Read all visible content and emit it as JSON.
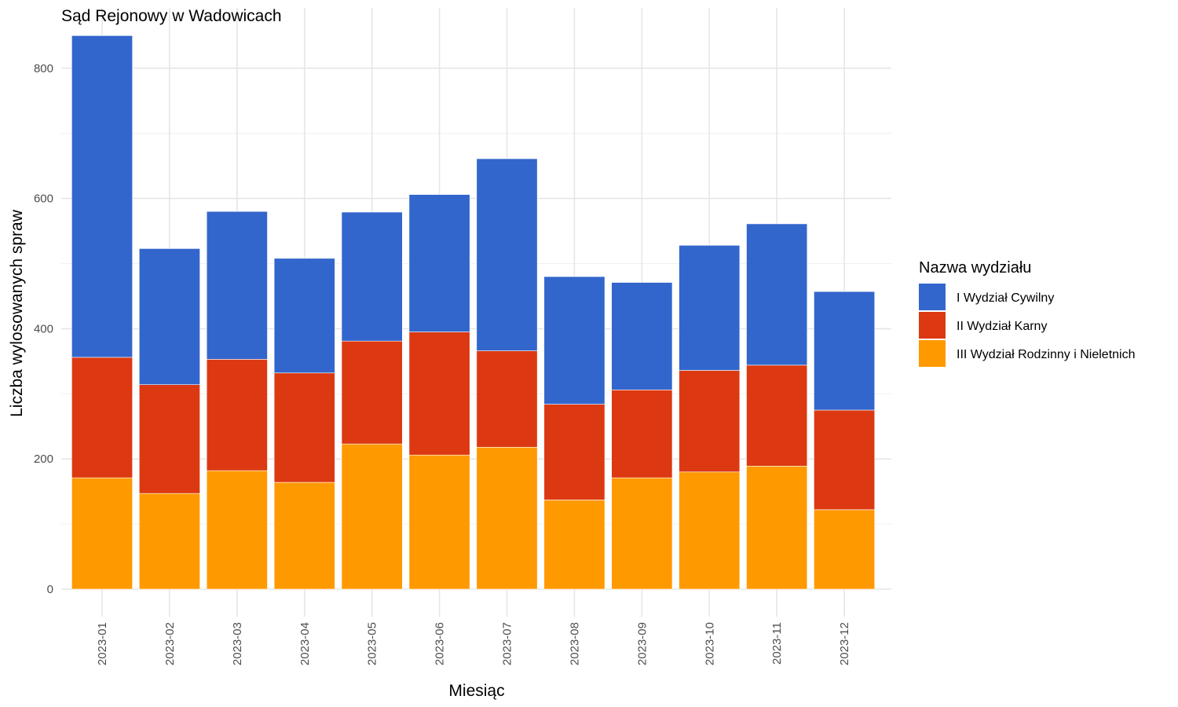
{
  "chart_data": {
    "type": "bar",
    "stacked": true,
    "title": "Sąd Rejonowy w Wadowicach",
    "xlabel": "Miesiąc",
    "ylabel": "Liczba wylosowanych spraw",
    "ylim": [
      0,
      870
    ],
    "yticks": [
      0,
      200,
      400,
      600,
      800
    ],
    "grid": true,
    "legend": {
      "title": "Nazwa wydziału",
      "placement": "right"
    },
    "categories": [
      "2023-01",
      "2023-02",
      "2023-03",
      "2023-04",
      "2023-05",
      "2023-06",
      "2023-07",
      "2023-08",
      "2023-09",
      "2023-10",
      "2023-11",
      "2023-12"
    ],
    "series": [
      {
        "name": "III Wydział Rodzinny i Nieletnich",
        "color": "#FF9900",
        "values": [
          171,
          147,
          182,
          164,
          223,
          206,
          218,
          137,
          171,
          180,
          189,
          122
        ]
      },
      {
        "name": "II Wydział Karny",
        "color": "#DC3912",
        "values": [
          185,
          167,
          171,
          168,
          158,
          189,
          148,
          147,
          135,
          156,
          155,
          153
        ]
      },
      {
        "name": "I Wydział Cywilny",
        "color": "#3366CC",
        "values": [
          494,
          209,
          227,
          176,
          198,
          211,
          295,
          196,
          165,
          192,
          217,
          182
        ]
      }
    ],
    "legend_order": [
      "I Wydział Cywilny",
      "II Wydział Karny",
      "III Wydział Rodzinny i Nieletnich"
    ]
  }
}
